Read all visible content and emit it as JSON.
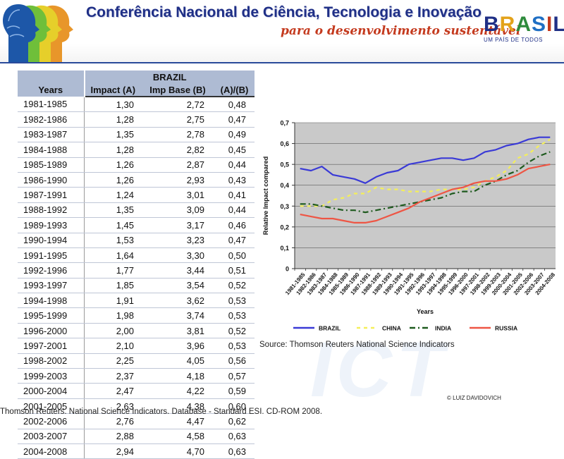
{
  "banner": {
    "title": "Conferência Nacional de Ciência, Tecnologia e Inovação",
    "subtitle": "para o desenvolvimento sustentável",
    "brand_letters": [
      "B",
      "R",
      "A",
      "S",
      "I",
      "L"
    ],
    "brand_tagline": "UM PAÍS DE TODOS",
    "colors": {
      "title": "#1f2f86",
      "subtitle": "#c43a1e",
      "brand_b": "#1f2f86",
      "brand_r": "#e3a21a",
      "brand_a": "#2e8b3c",
      "brand_s": "#1f6fc4",
      "brand_i": "#c43a1e",
      "brand_l": "#1f2f86"
    }
  },
  "table": {
    "group_header": "BRAZIL",
    "col_years": "Years",
    "col_impact": "Impact (A)",
    "col_base": "Imp Base (B)",
    "col_ratio": "(A)/(B)",
    "rows": [
      {
        "years": "1981-1985",
        "impact": "1,30",
        "base": "2,72",
        "ratio": "0,48"
      },
      {
        "years": "1982-1986",
        "impact": "1,28",
        "base": "2,75",
        "ratio": "0,47"
      },
      {
        "years": "1983-1987",
        "impact": "1,35",
        "base": "2,78",
        "ratio": "0,49"
      },
      {
        "years": "1984-1988",
        "impact": "1,28",
        "base": "2,82",
        "ratio": "0,45"
      },
      {
        "years": "1985-1989",
        "impact": "1,26",
        "base": "2,87",
        "ratio": "0,44"
      },
      {
        "years": "1986-1990",
        "impact": "1,26",
        "base": "2,93",
        "ratio": "0,43"
      },
      {
        "years": "1987-1991",
        "impact": "1,24",
        "base": "3,01",
        "ratio": "0,41"
      },
      {
        "years": "1988-1992",
        "impact": "1,35",
        "base": "3,09",
        "ratio": "0,44"
      },
      {
        "years": "1989-1993",
        "impact": "1,45",
        "base": "3,17",
        "ratio": "0,46"
      },
      {
        "years": "1990-1994",
        "impact": "1,53",
        "base": "3,23",
        "ratio": "0,47"
      },
      {
        "years": "1991-1995",
        "impact": "1,64",
        "base": "3,30",
        "ratio": "0,50"
      },
      {
        "years": "1992-1996",
        "impact": "1,77",
        "base": "3,44",
        "ratio": "0,51"
      },
      {
        "years": "1993-1997",
        "impact": "1,85",
        "base": "3,54",
        "ratio": "0,52"
      },
      {
        "years": "1994-1998",
        "impact": "1,91",
        "base": "3,62",
        "ratio": "0,53"
      },
      {
        "years": "1995-1999",
        "impact": "1,98",
        "base": "3,74",
        "ratio": "0,53"
      },
      {
        "years": "1996-2000",
        "impact": "2,00",
        "base": "3,81",
        "ratio": "0,52"
      },
      {
        "years": "1997-2001",
        "impact": "2,10",
        "base": "3,96",
        "ratio": "0,53"
      },
      {
        "years": "1998-2002",
        "impact": "2,25",
        "base": "4,05",
        "ratio": "0,56"
      },
      {
        "years": "1999-2003",
        "impact": "2,37",
        "base": "4,18",
        "ratio": "0,57"
      },
      {
        "years": "2000-2004",
        "impact": "2,47",
        "base": "4,22",
        "ratio": "0,59"
      },
      {
        "years": "2001-2005",
        "impact": "2,63",
        "base": "4,38",
        "ratio": "0,60"
      },
      {
        "years": "2002-2006",
        "impact": "2,76",
        "base": "4,47",
        "ratio": "0,62"
      },
      {
        "years": "2003-2007",
        "impact": "2,88",
        "base": "4,58",
        "ratio": "0,63"
      },
      {
        "years": "2004-2008",
        "impact": "2,94",
        "base": "4,70",
        "ratio": "0,63"
      }
    ],
    "footnote": "Thomson Reuters. National Science Indicators. Database - Standard ESI. CD-ROM 2008."
  },
  "chart_data": {
    "type": "line",
    "title": "",
    "xlabel": "Years",
    "ylabel": "Relative Impact compared",
    "ylim": [
      0,
      0.7
    ],
    "yticks": [
      "0",
      "0,1",
      "0,2",
      "0,3",
      "0,4",
      "0,5",
      "0,6",
      "0,7"
    ],
    "grid": true,
    "legend_position": "bottom",
    "background": "#c9c9c9",
    "categories": [
      "1981-1985",
      "1982-1986",
      "1983-1987",
      "1984-1988",
      "1985-1989",
      "1986-1990",
      "1987-1991",
      "1988-1992",
      "1989-1993",
      "1990-1994",
      "1991-1995",
      "1992-1996",
      "1993-1997",
      "1994-1998",
      "1995-1999",
      "1996-2000",
      "1997-2001",
      "1998-2002",
      "1999-2003",
      "2000-2004",
      "2001-2005",
      "2002-2006",
      "2003-2007",
      "2004-2008"
    ],
    "series": [
      {
        "name": "BRAZIL",
        "color": "#3a3ad6",
        "dash": "solid",
        "values": [
          0.48,
          0.47,
          0.49,
          0.45,
          0.44,
          0.43,
          0.41,
          0.44,
          0.46,
          0.47,
          0.5,
          0.51,
          0.52,
          0.53,
          0.53,
          0.52,
          0.53,
          0.56,
          0.57,
          0.59,
          0.6,
          0.62,
          0.63,
          0.63
        ]
      },
      {
        "name": "CHINA",
        "color": "#f4ef5a",
        "dash": "dashed",
        "values": [
          0.3,
          0.3,
          0.3,
          0.33,
          0.34,
          0.36,
          0.36,
          0.39,
          0.38,
          0.38,
          0.37,
          0.37,
          0.37,
          0.38,
          0.38,
          0.38,
          0.39,
          0.42,
          0.44,
          0.47,
          0.53,
          0.55,
          0.59,
          0.62
        ]
      },
      {
        "name": "INDIA",
        "color": "#1e5a1e",
        "dash": "dashdot",
        "values": [
          0.31,
          0.31,
          0.3,
          0.29,
          0.28,
          0.28,
          0.27,
          0.28,
          0.29,
          0.3,
          0.31,
          0.32,
          0.33,
          0.34,
          0.36,
          0.37,
          0.37,
          0.4,
          0.42,
          0.45,
          0.47,
          0.51,
          0.54,
          0.56
        ]
      },
      {
        "name": "RUSSIA",
        "color": "#ee5544",
        "dash": "solid",
        "values": [
          0.26,
          0.25,
          0.24,
          0.24,
          0.23,
          0.22,
          0.22,
          0.23,
          0.25,
          0.27,
          0.29,
          0.32,
          0.34,
          0.36,
          0.38,
          0.39,
          0.41,
          0.42,
          0.42,
          0.43,
          0.45,
          0.48,
          0.49,
          0.5
        ]
      }
    ]
  },
  "source_note": "Source: Thomson Reuters National Science Indicators",
  "copyright": "© LUIZ DAVIDOVICH",
  "watermark": "ICT"
}
